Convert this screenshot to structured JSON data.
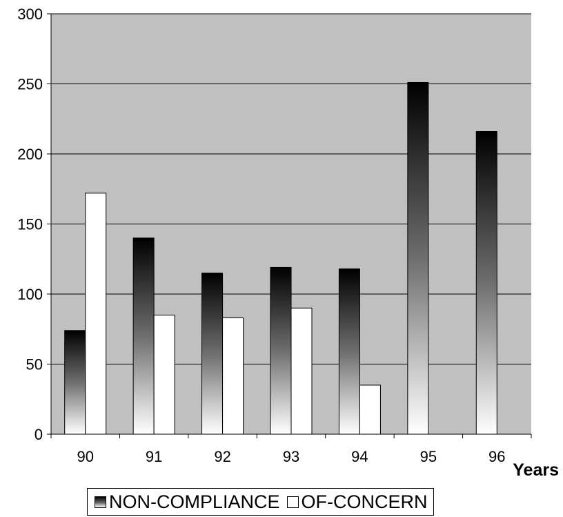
{
  "chart_data": {
    "type": "bar",
    "categories": [
      "90",
      "91",
      "92",
      "93",
      "94",
      "95",
      "96"
    ],
    "series": [
      {
        "name": "NON-COMPLIANCE",
        "values": [
          74,
          140,
          115,
          119,
          118,
          251,
          216
        ]
      },
      {
        "name": "OF-CONCERN",
        "values": [
          172,
          85,
          83,
          90,
          35,
          null,
          null
        ]
      }
    ],
    "title": "",
    "xlabel": "Years",
    "ylabel": "",
    "ylim": [
      0,
      300
    ],
    "yticks": [
      0,
      50,
      100,
      150,
      200,
      250,
      300
    ],
    "grid": true,
    "legend_position": "bottom",
    "colors": {
      "plot_background": "#c0c0c0",
      "non_compliance_top": "#000000",
      "non_compliance_bottom": "#ffffff",
      "of_concern": "#ffffff",
      "grid": "#000000"
    }
  }
}
